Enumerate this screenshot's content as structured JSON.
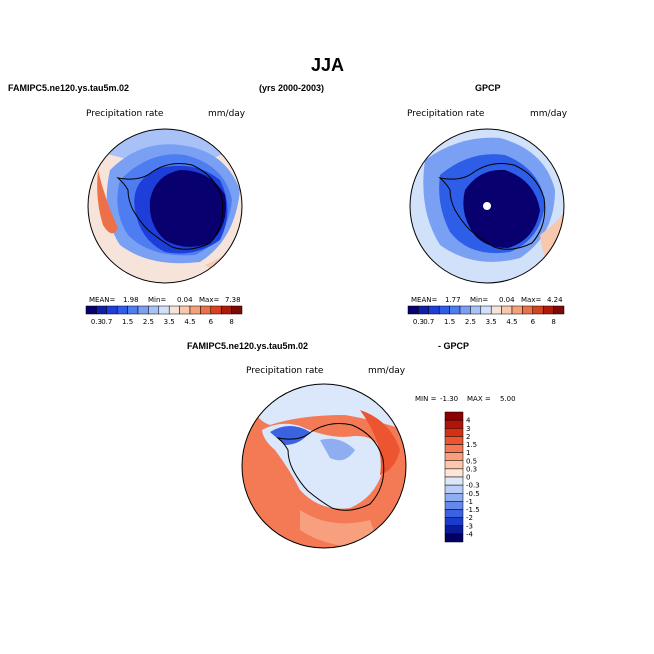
{
  "page": {
    "title": "JJA",
    "left_header": "FAMIPC5.ne120.ys.tau5m.02",
    "years": "(yrs 2000-2003)",
    "right_header": "GPCP",
    "diff_header_left": "FAMIPC5.ne120.ys.tau5m.02",
    "diff_header_right": "- GPCP"
  },
  "chart_data": [
    {
      "type": "heatmap",
      "projection": "south-polar-stereographic",
      "title": "Precipitation rate",
      "units": "mm/day",
      "stats": {
        "mean_label": "MEAN=",
        "mean": "1.98",
        "min_label": "Min=",
        "min": "0.04",
        "max_label": "Max=",
        "max": "7.38"
      },
      "levels": [
        "0.3",
        "0.7",
        "1",
        "1.5",
        "2",
        "2.5",
        "3",
        "3.5",
        "4",
        "4.5",
        "5",
        "6",
        "7",
        "8"
      ],
      "tick_labels": [
        "0.3",
        "0.7",
        "1.5",
        "2.5",
        "3.5",
        "4.5",
        "6",
        "8"
      ],
      "colors": [
        "#08006e",
        "#0f1fa6",
        "#1d3ed8",
        "#2e5ee8",
        "#4d7df0",
        "#7aa0f4",
        "#a8c2f7",
        "#d2e1fa",
        "#f6e4da",
        "#f8c8ae",
        "#f6a07a",
        "#ec7148",
        "#d6441f",
        "#b01a0b",
        "#7d0a05"
      ]
    },
    {
      "type": "heatmap",
      "projection": "south-polar-stereographic",
      "title": "Precipitation rate",
      "units": "mm/day",
      "stats": {
        "mean_label": "MEAN=",
        "mean": "1.77",
        "min_label": "Min=",
        "min": "0.04",
        "max_label": "Max=",
        "max": "4.24"
      },
      "levels": [
        "0.3",
        "0.7",
        "1",
        "1.5",
        "2",
        "2.5",
        "3",
        "3.5",
        "4",
        "4.5",
        "5",
        "6",
        "7",
        "8"
      ],
      "tick_labels": [
        "0.3",
        "0.7",
        "1.5",
        "2.5",
        "3.5",
        "4.5",
        "6",
        "8"
      ],
      "colors": [
        "#08006e",
        "#0f1fa6",
        "#1d3ed8",
        "#2e5ee8",
        "#4d7df0",
        "#7aa0f4",
        "#a8c2f7",
        "#d2e1fa",
        "#f6e4da",
        "#f8c8ae",
        "#f6a07a",
        "#ec7148",
        "#d6441f",
        "#b01a0b",
        "#7d0a05"
      ]
    },
    {
      "type": "heatmap",
      "projection": "south-polar-stereographic",
      "title": "Precipitation rate",
      "units": "mm/day",
      "stats": {
        "min_label": "MIN =",
        "min": "-1.30",
        "max_label": "MAX =",
        "max": "5.00"
      },
      "levels": [
        "4",
        "3",
        "2",
        "1.5",
        "1",
        "0.5",
        "0.3",
        "0",
        "-0.3",
        "-0.5",
        "-1",
        "-1.5",
        "-2",
        "-3",
        "-4"
      ],
      "colors": [
        "#8b0000",
        "#b31208",
        "#d62f14",
        "#ec5530",
        "#f47a55",
        "#f8a07e",
        "#fbc7ad",
        "#fde6d8",
        "#dbe7fb",
        "#b9cdf6",
        "#8fadf1",
        "#6489ea",
        "#3b62e0",
        "#1a3ccc",
        "#0a1a9a",
        "#020066"
      ]
    }
  ]
}
